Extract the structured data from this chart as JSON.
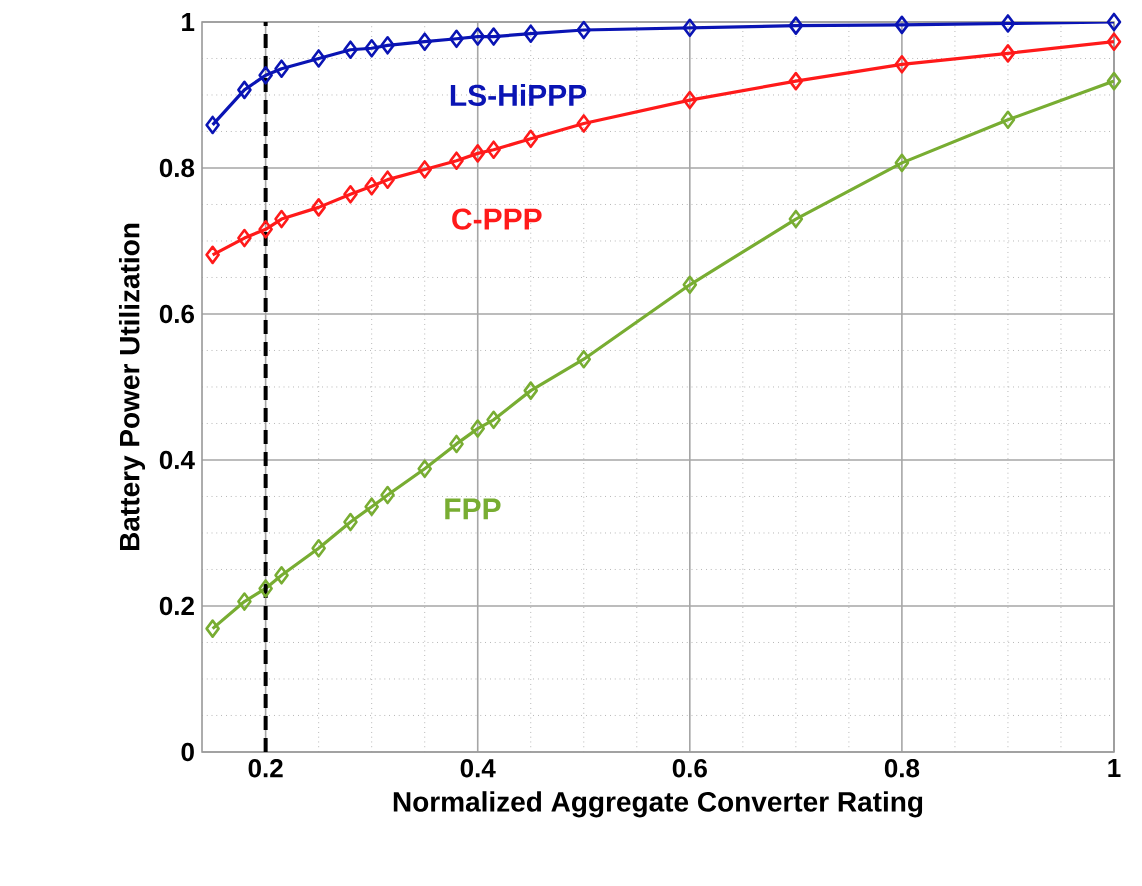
{
  "chart_data": {
    "type": "line",
    "xlabel": "Normalized Aggregate Converter Rating",
    "ylabel": "Battery Power Utilization",
    "x": [
      0.15,
      0.18,
      0.2,
      0.215,
      0.25,
      0.28,
      0.3,
      0.315,
      0.35,
      0.38,
      0.4,
      0.415,
      0.45,
      0.5,
      0.6,
      0.7,
      0.8,
      0.9,
      1
    ],
    "series": [
      {
        "name": "LS-HiPPP",
        "color": "#0a14b4",
        "values": [
          0.859,
          0.907,
          0.927,
          0.936,
          0.95,
          0.962,
          0.964,
          0.968,
          0.973,
          0.977,
          0.98,
          0.98,
          0.984,
          0.989,
          0.992,
          0.995,
          0.996,
          0.998,
          1.0
        ]
      },
      {
        "name": "C-PPP",
        "color": "#ff1a1a",
        "values": [
          0.681,
          0.704,
          0.716,
          0.73,
          0.746,
          0.764,
          0.775,
          0.784,
          0.798,
          0.81,
          0.82,
          0.825,
          0.84,
          0.861,
          0.893,
          0.919,
          0.942,
          0.957,
          0.973
        ]
      },
      {
        "name": "FPP",
        "color": "#78ad32",
        "values": [
          0.169,
          0.206,
          0.224,
          0.242,
          0.279,
          0.315,
          0.336,
          0.352,
          0.388,
          0.422,
          0.443,
          0.455,
          0.495,
          0.538,
          0.64,
          0.73,
          0.807,
          0.866,
          0.919
        ]
      }
    ],
    "xlim": [
      0.14,
      1
    ],
    "ylim": [
      0,
      1
    ],
    "xticks": [
      0.2,
      0.4,
      0.6,
      0.8,
      1
    ],
    "yticks": [
      0,
      0.2,
      0.4,
      0.6,
      0.8,
      1
    ],
    "ref_lines": [
      {
        "axis": "x",
        "value": 0.2,
        "color": "#000000",
        "line_style": "dashed"
      }
    ],
    "grid": true,
    "legend": false,
    "marker": "diamond",
    "line_style": "solid"
  }
}
